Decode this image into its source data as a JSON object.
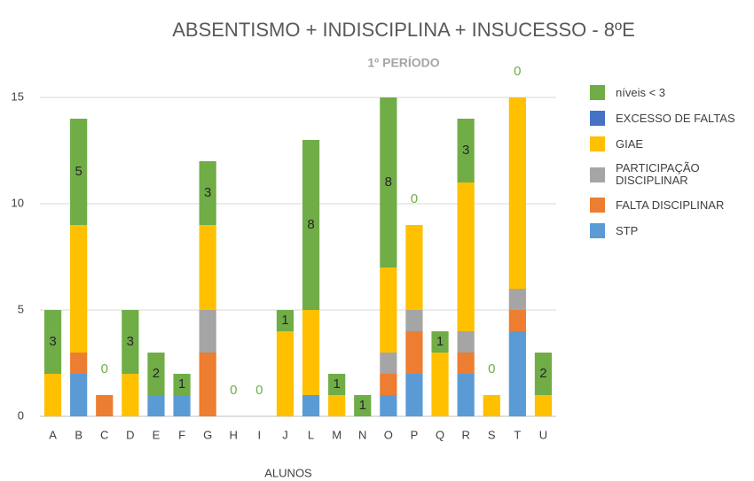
{
  "chart_data": {
    "type": "stacked_bar",
    "title": "ABSENTISMO + INDISCIPLINA + INSUCESSO  - 8ºE",
    "subtitle": "1º PERÍODO",
    "x_label": "ALUNOS",
    "categories": [
      "A",
      "B",
      "C",
      "D",
      "E",
      "F",
      "G",
      "H",
      "I",
      "J",
      "L",
      "M",
      "N",
      "O",
      "P",
      "Q",
      "R",
      "S",
      "T",
      "U"
    ],
    "series": [
      {
        "name": "STP",
        "color": "#5b9bd5",
        "values": [
          0,
          2,
          0,
          0,
          1,
          1,
          0,
          0,
          0,
          0,
          1,
          0,
          0,
          1,
          2,
          0,
          2,
          0,
          4,
          0
        ]
      },
      {
        "name": "FALTA DISCIPLINAR",
        "color": "#ed7d31",
        "values": [
          0,
          1,
          1,
          0,
          0,
          0,
          3,
          0,
          0,
          0,
          0,
          0,
          0,
          1,
          2,
          0,
          1,
          0,
          1,
          0
        ]
      },
      {
        "name": "PARTICIPAÇÃO DISCIPLINAR",
        "color": "#a5a5a5",
        "values": [
          0,
          0,
          0,
          0,
          0,
          0,
          2,
          0,
          0,
          0,
          0,
          0,
          0,
          1,
          1,
          0,
          1,
          0,
          1,
          0
        ]
      },
      {
        "name": "GIAE",
        "color": "#ffc000",
        "values": [
          2,
          6,
          0,
          2,
          0,
          0,
          4,
          0,
          0,
          4,
          4,
          1,
          0,
          4,
          4,
          3,
          7,
          1,
          9,
          1
        ]
      },
      {
        "name": "EXCESSO DE FALTAS",
        "color": "#4472c4",
        "values": [
          0,
          0,
          0,
          0,
          0,
          0,
          0,
          0,
          0,
          0,
          0,
          0,
          0,
          0,
          0,
          0,
          0,
          0,
          0,
          0
        ]
      },
      {
        "name": "níveis < 3",
        "color": "#70ad47",
        "labels": true,
        "values": [
          3,
          5,
          0,
          3,
          2,
          1,
          3,
          0,
          0,
          1,
          8,
          1,
          1,
          8,
          0,
          1,
          3,
          0,
          0,
          2
        ]
      }
    ],
    "ylim": [
      0,
      15
    ],
    "yticks": [
      0,
      5,
      10,
      15
    ],
    "grid": true,
    "legend": "right"
  }
}
